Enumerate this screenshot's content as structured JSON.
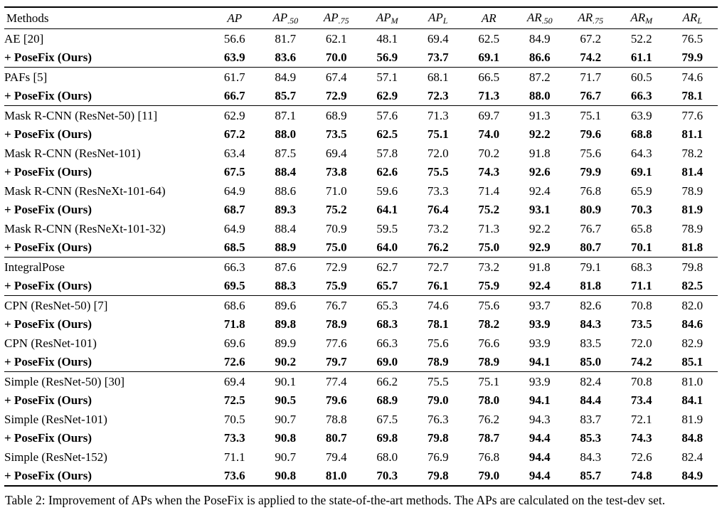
{
  "colors": {
    "text": "#000000",
    "background": "#ffffff",
    "rule": "#000000"
  },
  "table": {
    "caption": "Table 2: Improvement of APs when the PoseFix is applied to the state-of-the-art methods. The APs are calculated on the test-dev set.",
    "columns": [
      {
        "base": "Methods",
        "sub": "",
        "math": false
      },
      {
        "base": "AP",
        "sub": "",
        "math": true
      },
      {
        "base": "AP",
        "sub": ".50",
        "math": true
      },
      {
        "base": "AP",
        "sub": ".75",
        "math": true
      },
      {
        "base": "AP",
        "sub": "M",
        "math": true
      },
      {
        "base": "AP",
        "sub": "L",
        "math": true
      },
      {
        "base": "AR",
        "sub": "",
        "math": true
      },
      {
        "base": "AR",
        "sub": ".50",
        "math": true
      },
      {
        "base": "AR",
        "sub": ".75",
        "math": true
      },
      {
        "base": "AR",
        "sub": "M",
        "math": true
      },
      {
        "base": "AR",
        "sub": "L",
        "math": true
      }
    ],
    "rows": [
      {
        "method": "AE [20]",
        "bold": false,
        "section_start": false,
        "bold_value_indices": [],
        "values": [
          "56.6",
          "81.7",
          "62.1",
          "48.1",
          "69.4",
          "62.5",
          "84.9",
          "67.2",
          "52.2",
          "76.5"
        ]
      },
      {
        "method": "+ PoseFix (Ours)",
        "bold": true,
        "section_start": false,
        "bold_value_indices": [],
        "values": [
          "63.9",
          "83.6",
          "70.0",
          "56.9",
          "73.7",
          "69.1",
          "86.6",
          "74.2",
          "61.1",
          "79.9"
        ]
      },
      {
        "method": "PAFs [5]",
        "bold": false,
        "section_start": true,
        "bold_value_indices": [],
        "values": [
          "61.7",
          "84.9",
          "67.4",
          "57.1",
          "68.1",
          "66.5",
          "87.2",
          "71.7",
          "60.5",
          "74.6"
        ]
      },
      {
        "method": "+ PoseFix (Ours)",
        "bold": true,
        "section_start": false,
        "bold_value_indices": [],
        "values": [
          "66.7",
          "85.7",
          "72.9",
          "62.9",
          "72.3",
          "71.3",
          "88.0",
          "76.7",
          "66.3",
          "78.1"
        ]
      },
      {
        "method": "Mask R-CNN (ResNet-50) [11]",
        "bold": false,
        "section_start": true,
        "bold_value_indices": [],
        "values": [
          "62.9",
          "87.1",
          "68.9",
          "57.6",
          "71.3",
          "69.7",
          "91.3",
          "75.1",
          "63.9",
          "77.6"
        ]
      },
      {
        "method": "+ PoseFix (Ours)",
        "bold": true,
        "section_start": false,
        "bold_value_indices": [],
        "values": [
          "67.2",
          "88.0",
          "73.5",
          "62.5",
          "75.1",
          "74.0",
          "92.2",
          "79.6",
          "68.8",
          "81.1"
        ]
      },
      {
        "method": "Mask R-CNN (ResNet-101)",
        "bold": false,
        "section_start": false,
        "bold_value_indices": [],
        "values": [
          "63.4",
          "87.5",
          "69.4",
          "57.8",
          "72.0",
          "70.2",
          "91.8",
          "75.6",
          "64.3",
          "78.2"
        ]
      },
      {
        "method": "+ PoseFix (Ours)",
        "bold": true,
        "section_start": false,
        "bold_value_indices": [],
        "values": [
          "67.5",
          "88.4",
          "73.8",
          "62.6",
          "75.5",
          "74.3",
          "92.6",
          "79.9",
          "69.1",
          "81.4"
        ]
      },
      {
        "method": "Mask R-CNN (ResNeXt-101-64)",
        "bold": false,
        "section_start": false,
        "bold_value_indices": [],
        "values": [
          "64.9",
          "88.6",
          "71.0",
          "59.6",
          "73.3",
          "71.4",
          "92.4",
          "76.8",
          "65.9",
          "78.9"
        ]
      },
      {
        "method": "+ PoseFix (Ours)",
        "bold": true,
        "section_start": false,
        "bold_value_indices": [],
        "values": [
          "68.7",
          "89.3",
          "75.2",
          "64.1",
          "76.4",
          "75.2",
          "93.1",
          "80.9",
          "70.3",
          "81.9"
        ]
      },
      {
        "method": "Mask R-CNN (ResNeXt-101-32)",
        "bold": false,
        "section_start": false,
        "bold_value_indices": [],
        "values": [
          "64.9",
          "88.4",
          "70.9",
          "59.5",
          "73.2",
          "71.3",
          "92.2",
          "76.7",
          "65.8",
          "78.9"
        ]
      },
      {
        "method": "+ PoseFix (Ours)",
        "bold": true,
        "section_start": false,
        "bold_value_indices": [],
        "values": [
          "68.5",
          "88.9",
          "75.0",
          "64.0",
          "76.2",
          "75.0",
          "92.9",
          "80.7",
          "70.1",
          "81.8"
        ]
      },
      {
        "method": "IntegralPose",
        "bold": false,
        "section_start": true,
        "bold_value_indices": [],
        "values": [
          "66.3",
          "87.6",
          "72.9",
          "62.7",
          "72.7",
          "73.2",
          "91.8",
          "79.1",
          "68.3",
          "79.8"
        ]
      },
      {
        "method": "+ PoseFix (Ours)",
        "bold": true,
        "section_start": false,
        "bold_value_indices": [],
        "values": [
          "69.5",
          "88.3",
          "75.9",
          "65.7",
          "76.1",
          "75.9",
          "92.4",
          "81.8",
          "71.1",
          "82.5"
        ]
      },
      {
        "method": "CPN (ResNet-50) [7]",
        "bold": false,
        "section_start": true,
        "bold_value_indices": [],
        "values": [
          "68.6",
          "89.6",
          "76.7",
          "65.3",
          "74.6",
          "75.6",
          "93.7",
          "82.6",
          "70.8",
          "82.0"
        ]
      },
      {
        "method": "+ PoseFix (Ours)",
        "bold": true,
        "section_start": false,
        "bold_value_indices": [],
        "values": [
          "71.8",
          "89.8",
          "78.9",
          "68.3",
          "78.1",
          "78.2",
          "93.9",
          "84.3",
          "73.5",
          "84.6"
        ]
      },
      {
        "method": "CPN (ResNet-101)",
        "bold": false,
        "section_start": false,
        "bold_value_indices": [],
        "values": [
          "69.6",
          "89.9",
          "77.6",
          "66.3",
          "75.6",
          "76.6",
          "93.9",
          "83.5",
          "72.0",
          "82.9"
        ]
      },
      {
        "method": "+ PoseFix (Ours)",
        "bold": true,
        "section_start": false,
        "bold_value_indices": [],
        "values": [
          "72.6",
          "90.2",
          "79.7",
          "69.0",
          "78.9",
          "78.9",
          "94.1",
          "85.0",
          "74.2",
          "85.1"
        ]
      },
      {
        "method": "Simple (ResNet-50) [30]",
        "bold": false,
        "section_start": true,
        "bold_value_indices": [],
        "values": [
          "69.4",
          "90.1",
          "77.4",
          "66.2",
          "75.5",
          "75.1",
          "93.9",
          "82.4",
          "70.8",
          "81.0"
        ]
      },
      {
        "method": "+ PoseFix (Ours)",
        "bold": true,
        "section_start": false,
        "bold_value_indices": [],
        "values": [
          "72.5",
          "90.5",
          "79.6",
          "68.9",
          "79.0",
          "78.0",
          "94.1",
          "84.4",
          "73.4",
          "84.1"
        ]
      },
      {
        "method": "Simple (ResNet-101)",
        "bold": false,
        "section_start": false,
        "bold_value_indices": [],
        "values": [
          "70.5",
          "90.7",
          "78.8",
          "67.5",
          "76.3",
          "76.2",
          "94.3",
          "83.7",
          "72.1",
          "81.9"
        ]
      },
      {
        "method": "+ PoseFix (Ours)",
        "bold": true,
        "section_start": false,
        "bold_value_indices": [],
        "values": [
          "73.3",
          "90.8",
          "80.7",
          "69.8",
          "79.8",
          "78.7",
          "94.4",
          "85.3",
          "74.3",
          "84.8"
        ]
      },
      {
        "method": "Simple (ResNet-152)",
        "bold": false,
        "section_start": false,
        "bold_value_indices": [
          6
        ],
        "values": [
          "71.1",
          "90.7",
          "79.4",
          "68.0",
          "76.9",
          "76.8",
          "94.4",
          "84.3",
          "72.6",
          "82.4"
        ]
      },
      {
        "method": "+ PoseFix (Ours)",
        "bold": true,
        "section_start": false,
        "bold_value_indices": [],
        "values": [
          "73.6",
          "90.8",
          "81.0",
          "70.3",
          "79.8",
          "79.0",
          "94.4",
          "85.7",
          "74.8",
          "84.9"
        ]
      }
    ]
  },
  "chart_data": {
    "type": "table",
    "title": "Table 2: Improvement of APs when the PoseFix is applied to the state-of-the-art methods. The APs are calculated on the test-dev set.",
    "columns": [
      "Methods",
      "AP",
      "AP.50",
      "AP.75",
      "APM",
      "APL",
      "AR",
      "AR.50",
      "AR.75",
      "ARM",
      "ARL"
    ],
    "rows": [
      [
        "AE [20]",
        56.6,
        81.7,
        62.1,
        48.1,
        69.4,
        62.5,
        84.9,
        67.2,
        52.2,
        76.5
      ],
      [
        "+ PoseFix (Ours)",
        63.9,
        83.6,
        70.0,
        56.9,
        73.7,
        69.1,
        86.6,
        74.2,
        61.1,
        79.9
      ],
      [
        "PAFs [5]",
        61.7,
        84.9,
        67.4,
        57.1,
        68.1,
        66.5,
        87.2,
        71.7,
        60.5,
        74.6
      ],
      [
        "+ PoseFix (Ours)",
        66.7,
        85.7,
        72.9,
        62.9,
        72.3,
        71.3,
        88.0,
        76.7,
        66.3,
        78.1
      ],
      [
        "Mask R-CNN (ResNet-50) [11]",
        62.9,
        87.1,
        68.9,
        57.6,
        71.3,
        69.7,
        91.3,
        75.1,
        63.9,
        77.6
      ],
      [
        "+ PoseFix (Ours)",
        67.2,
        88.0,
        73.5,
        62.5,
        75.1,
        74.0,
        92.2,
        79.6,
        68.8,
        81.1
      ],
      [
        "Mask R-CNN (ResNet-101)",
        63.4,
        87.5,
        69.4,
        57.8,
        72.0,
        70.2,
        91.8,
        75.6,
        64.3,
        78.2
      ],
      [
        "+ PoseFix (Ours)",
        67.5,
        88.4,
        73.8,
        62.6,
        75.5,
        74.3,
        92.6,
        79.9,
        69.1,
        81.4
      ],
      [
        "Mask R-CNN (ResNeXt-101-64)",
        64.9,
        88.6,
        71.0,
        59.6,
        73.3,
        71.4,
        92.4,
        76.8,
        65.9,
        78.9
      ],
      [
        "+ PoseFix (Ours)",
        68.7,
        89.3,
        75.2,
        64.1,
        76.4,
        75.2,
        93.1,
        80.9,
        70.3,
        81.9
      ],
      [
        "Mask R-CNN (ResNeXt-101-32)",
        64.9,
        88.4,
        70.9,
        59.5,
        73.2,
        71.3,
        92.2,
        76.7,
        65.8,
        78.9
      ],
      [
        "+ PoseFix (Ours)",
        68.5,
        88.9,
        75.0,
        64.0,
        76.2,
        75.0,
        92.9,
        80.7,
        70.1,
        81.8
      ],
      [
        "IntegralPose",
        66.3,
        87.6,
        72.9,
        62.7,
        72.7,
        73.2,
        91.8,
        79.1,
        68.3,
        79.8
      ],
      [
        "+ PoseFix (Ours)",
        69.5,
        88.3,
        75.9,
        65.7,
        76.1,
        75.9,
        92.4,
        81.8,
        71.1,
        82.5
      ],
      [
        "CPN (ResNet-50) [7]",
        68.6,
        89.6,
        76.7,
        65.3,
        74.6,
        75.6,
        93.7,
        82.6,
        70.8,
        82.0
      ],
      [
        "+ PoseFix (Ours)",
        71.8,
        89.8,
        78.9,
        68.3,
        78.1,
        78.2,
        93.9,
        84.3,
        73.5,
        84.6
      ],
      [
        "CPN (ResNet-101)",
        69.6,
        89.9,
        77.6,
        66.3,
        75.6,
        76.6,
        93.9,
        83.5,
        72.0,
        82.9
      ],
      [
        "+ PoseFix (Ours)",
        72.6,
        90.2,
        79.7,
        69.0,
        78.9,
        78.9,
        94.1,
        85.0,
        74.2,
        85.1
      ],
      [
        "Simple (ResNet-50) [30]",
        69.4,
        90.1,
        77.4,
        66.2,
        75.5,
        75.1,
        93.9,
        82.4,
        70.8,
        81.0
      ],
      [
        "+ PoseFix (Ours)",
        72.5,
        90.5,
        79.6,
        68.9,
        79.0,
        78.0,
        94.1,
        84.4,
        73.4,
        84.1
      ],
      [
        "Simple (ResNet-101)",
        70.5,
        90.7,
        78.8,
        67.5,
        76.3,
        76.2,
        94.3,
        83.7,
        72.1,
        81.9
      ],
      [
        "+ PoseFix (Ours)",
        73.3,
        90.8,
        80.7,
        69.8,
        79.8,
        78.7,
        94.4,
        85.3,
        74.3,
        84.8
      ],
      [
        "Simple (ResNet-152)",
        71.1,
        90.7,
        79.4,
        68.0,
        76.9,
        76.8,
        94.4,
        84.3,
        72.6,
        82.4
      ],
      [
        "+ PoseFix (Ours)",
        73.6,
        90.8,
        81.0,
        70.3,
        79.8,
        79.0,
        94.4,
        85.7,
        74.8,
        84.9
      ]
    ]
  }
}
